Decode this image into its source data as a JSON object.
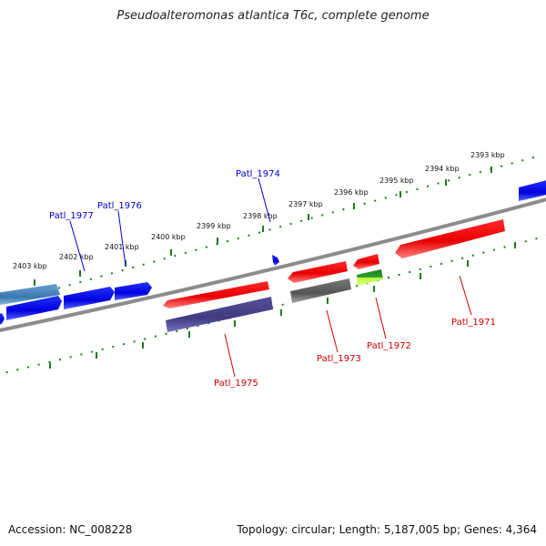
{
  "title": "Pseudoalteromonas atlantica T6c, complete genome",
  "footer": {
    "accession": "Accession: NC_008228",
    "summary": "Topology: circular; Length: 5,187,005 bp; Genes: 4,364"
  },
  "colors": {
    "backbone": "#8a8a8a",
    "scale_ticks": "#1f7a1f",
    "label_forward": "#0000cc",
    "label_reverse": "#cc0000"
  },
  "scale_labels": [
    "2393 kbp",
    "2394 kbp",
    "2395 kbp",
    "2396 kbp",
    "2397 kbp",
    "2398 kbp",
    "2399 kbp",
    "2400 kbp",
    "2401 kbp",
    "2402 kbp",
    "2403 kbp"
  ],
  "gene_labels": {
    "g1977": "Patl_1977",
    "g1976": "Patl_1976",
    "g1974": "Patl_1974",
    "g1975": "Patl_1975",
    "g1973": "Patl_1973",
    "g1972": "Patl_1972",
    "g1971": "Patl_1971"
  }
}
